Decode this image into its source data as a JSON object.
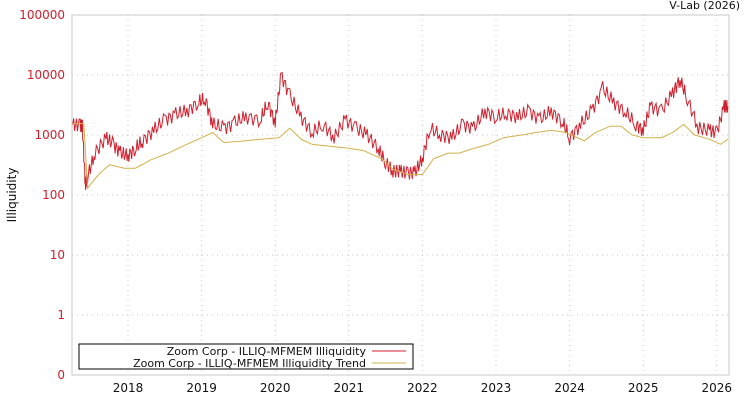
{
  "header": {
    "credit": "V-Lab (2026)"
  },
  "chart_data": {
    "type": "line",
    "title": "",
    "xlabel": "",
    "ylabel": "Illiquidity",
    "yscale": "log",
    "ylim": [
      0,
      100000
    ],
    "y_ticks": [
      "100000",
      "10000",
      "1000",
      "100",
      "10",
      "1",
      "0"
    ],
    "x_ticks": [
      "2018",
      "2019",
      "2020",
      "2021",
      "2022",
      "2023",
      "2024",
      "2025",
      "2026"
    ],
    "grid": true,
    "legend_position": "bottom-left",
    "series": [
      {
        "name": "Zoom Corp - ILLIQ-MFMEM Illiquidity",
        "color": "#d0202e",
        "points": [
          [
            2017.25,
            1500
          ],
          [
            2017.35,
            1450
          ],
          [
            2017.38,
            1400
          ],
          [
            2017.42,
            150
          ],
          [
            2017.45,
            200
          ],
          [
            2017.55,
            500
          ],
          [
            2017.7,
            900
          ],
          [
            2017.8,
            700
          ],
          [
            2017.9,
            500
          ],
          [
            2018.0,
            450
          ],
          [
            2018.1,
            600
          ],
          [
            2018.2,
            800
          ],
          [
            2018.35,
            1200
          ],
          [
            2018.5,
            1800
          ],
          [
            2018.65,
            2200
          ],
          [
            2018.8,
            2500
          ],
          [
            2018.95,
            3500
          ],
          [
            2019.05,
            4000
          ],
          [
            2019.15,
            1500
          ],
          [
            2019.3,
            1300
          ],
          [
            2019.45,
            1600
          ],
          [
            2019.6,
            2000
          ],
          [
            2019.8,
            1800
          ],
          [
            2019.9,
            3500
          ],
          [
            2020.0,
            1600
          ],
          [
            2020.08,
            10000
          ],
          [
            2020.2,
            4500
          ],
          [
            2020.35,
            2000
          ],
          [
            2020.5,
            1100
          ],
          [
            2020.65,
            1500
          ],
          [
            2020.8,
            900
          ],
          [
            2020.95,
            1800
          ],
          [
            2021.1,
            1300
          ],
          [
            2021.25,
            1000
          ],
          [
            2021.4,
            600
          ],
          [
            2021.5,
            350
          ],
          [
            2021.6,
            250
          ],
          [
            2021.7,
            250
          ],
          [
            2021.8,
            230
          ],
          [
            2021.9,
            240
          ],
          [
            2022.0,
            400
          ],
          [
            2022.1,
            1300
          ],
          [
            2022.25,
            1000
          ],
          [
            2022.4,
            900
          ],
          [
            2022.55,
            1500
          ],
          [
            2022.7,
            1300
          ],
          [
            2022.85,
            2500
          ],
          [
            2023.0,
            2000
          ],
          [
            2023.15,
            2300
          ],
          [
            2023.3,
            2000
          ],
          [
            2023.45,
            2500
          ],
          [
            2023.6,
            1800
          ],
          [
            2023.75,
            2500
          ],
          [
            2023.9,
            1700
          ],
          [
            2024.0,
            900
          ],
          [
            2024.15,
            1500
          ],
          [
            2024.3,
            2500
          ],
          [
            2024.45,
            6000
          ],
          [
            2024.6,
            3500
          ],
          [
            2024.75,
            2500
          ],
          [
            2024.9,
            1500
          ],
          [
            2025.0,
            1200
          ],
          [
            2025.1,
            3000
          ],
          [
            2025.25,
            2500
          ],
          [
            2025.4,
            5000
          ],
          [
            2025.5,
            8500
          ],
          [
            2025.6,
            4000
          ],
          [
            2025.75,
            1300
          ],
          [
            2025.9,
            1200
          ],
          [
            2026.0,
            1100
          ],
          [
            2026.1,
            3000
          ],
          [
            2026.15,
            3000
          ]
        ]
      },
      {
        "name": "Zoom Corp - ILLIQ-MFMEM Illiquidity Trend",
        "color": "#d4b048",
        "points": [
          [
            2017.25,
            1550
          ],
          [
            2017.4,
            1550
          ],
          [
            2017.45,
            130
          ],
          [
            2017.6,
            220
          ],
          [
            2017.75,
            320
          ],
          [
            2017.95,
            280
          ],
          [
            2018.1,
            280
          ],
          [
            2018.3,
            380
          ],
          [
            2018.55,
            500
          ],
          [
            2018.8,
            700
          ],
          [
            2019.0,
            900
          ],
          [
            2019.15,
            1100
          ],
          [
            2019.3,
            750
          ],
          [
            2019.5,
            780
          ],
          [
            2019.8,
            850
          ],
          [
            2020.05,
            900
          ],
          [
            2020.2,
            1300
          ],
          [
            2020.35,
            850
          ],
          [
            2020.5,
            700
          ],
          [
            2020.8,
            640
          ],
          [
            2021.0,
            600
          ],
          [
            2021.2,
            550
          ],
          [
            2021.45,
            400
          ],
          [
            2021.6,
            270
          ],
          [
            2021.8,
            220
          ],
          [
            2022.0,
            220
          ],
          [
            2022.15,
            400
          ],
          [
            2022.35,
            500
          ],
          [
            2022.5,
            500
          ],
          [
            2022.7,
            600
          ],
          [
            2022.9,
            700
          ],
          [
            2023.1,
            900
          ],
          [
            2023.35,
            1000
          ],
          [
            2023.55,
            1100
          ],
          [
            2023.75,
            1200
          ],
          [
            2023.95,
            1100
          ],
          [
            2024.2,
            800
          ],
          [
            2024.35,
            1100
          ],
          [
            2024.55,
            1400
          ],
          [
            2024.7,
            1400
          ],
          [
            2024.85,
            1000
          ],
          [
            2025.0,
            900
          ],
          [
            2025.25,
            900
          ],
          [
            2025.4,
            1100
          ],
          [
            2025.55,
            1500
          ],
          [
            2025.7,
            1000
          ],
          [
            2025.9,
            850
          ],
          [
            2026.05,
            700
          ],
          [
            2026.15,
            850
          ]
        ]
      }
    ]
  }
}
